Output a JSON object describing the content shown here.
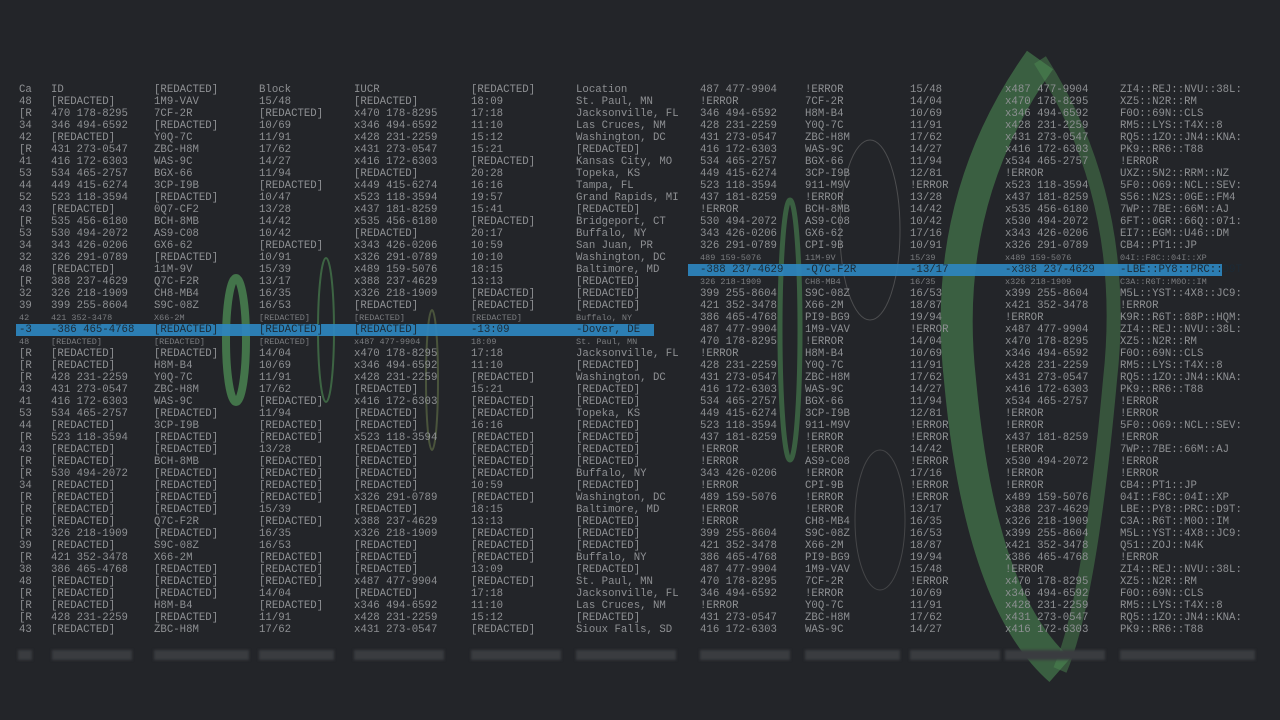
{
  "colors": {
    "background": "#232529",
    "text": "#8e9093",
    "highlight": "#2e86bf",
    "accent_green": "#4f8f55"
  },
  "left_table": {
    "highlighted_row": 20,
    "rows": [
      [
        "Ca",
        "ID",
        "[REDACTED]",
        "Block",
        "IUCR",
        "[REDACTED]",
        "Location"
      ],
      [
        "48",
        "[REDACTED]",
        "1M9-VAV",
        "15/48",
        "[REDACTED]",
        "18:09",
        "St. Paul, MN"
      ],
      [
        "[R",
        "470 178-8295",
        "7CF-2R",
        "[REDACTED]",
        "x470 178-8295",
        "17:18",
        "Jacksonville, FL"
      ],
      [
        "34",
        "346 494-6592",
        "[REDACTED]",
        "10/69",
        "x346 494-6592",
        "11:10",
        "Las Cruces, NM"
      ],
      [
        "42",
        "[REDACTED]",
        "Y0Q-7C",
        "11/91",
        "x428 231-2259",
        "15:12",
        "Washington, DC"
      ],
      [
        "[R",
        "431 273-0547",
        "ZBC-H8M",
        "17/62",
        "x431 273-0547",
        "15:21",
        "[REDACTED]"
      ],
      [
        "41",
        "416 172-6303",
        "WAS-9C",
        "14/27",
        "x416 172-6303",
        "[REDACTED]",
        "Kansas City, MO"
      ],
      [
        "53",
        "534 465-2757",
        "BGX-66",
        "11/94",
        "[REDACTED]",
        "20:28",
        "Topeka, KS"
      ],
      [
        "44",
        "449 415-6274",
        "3CP-I9B",
        "[REDACTED]",
        "x449 415-6274",
        "16:16",
        "Tampa, FL"
      ],
      [
        "52",
        "523 118-3594",
        "[REDACTED]",
        "10/47",
        "x523 118-3594",
        "19:57",
        "Grand Rapids, MI"
      ],
      [
        "43",
        "[REDACTED]",
        "0Q7-CF2",
        "13/28",
        "x437 181-8259",
        "15:41",
        "[REDACTED]"
      ],
      [
        "[R",
        "535 456-6180",
        "BCH-8MB",
        "14/42",
        "x535 456-6180",
        "[REDACTED]",
        "Bridgeport, CT"
      ],
      [
        "53",
        "530 494-2072",
        "AS9-C08",
        "10/42",
        "[REDACTED]",
        "20:17",
        "Buffalo, NY"
      ],
      [
        "34",
        "343 426-0206",
        "GX6-62",
        "[REDACTED]",
        "x343 426-0206",
        "10:59",
        "San Juan, PR"
      ],
      [
        "32",
        "326 291-0789",
        "[REDACTED]",
        "10/91",
        "x326 291-0789",
        "10:10",
        "Washington, DC"
      ],
      [
        "48",
        "[REDACTED]",
        "11M-9V",
        "15/39",
        "x489 159-5076",
        "18:15",
        "Baltimore, MD"
      ],
      [
        "[R",
        "388 237-4629",
        "Q7C-F2R",
        "13/17",
        "x388 237-4629",
        "13:13",
        "[REDACTED]"
      ],
      [
        "32",
        "326 218-1909",
        "CH8-MB4",
        "16/35",
        "x326 218-1909",
        "[REDACTED]",
        "[REDACTED]"
      ],
      [
        "39",
        "399 255-8604",
        "S9C-08Z",
        "16/53",
        "[REDACTED]",
        "[REDACTED]",
        "[REDACTED]"
      ],
      [
        "42",
        "421 352-3478",
        "X66-2M",
        "[REDACTED]",
        "[REDACTED]",
        "[REDACTED]",
        "Buffalo, NY"
      ],
      [
        "-3",
        "-386 465-4768",
        "[REDACTED]",
        "[REDACTED]",
        "[REDACTED]",
        "-13:09",
        "-Dover, DE"
      ],
      [
        "48",
        "[REDACTED]",
        "[REDACTED]",
        "[REDACTED]",
        "x487 477-9904",
        "18:09",
        "St. Paul, MN"
      ],
      [
        "[R",
        "[REDACTED]",
        "[REDACTED]",
        "14/04",
        "x470 178-8295",
        "17:18",
        "Jacksonville, FL"
      ],
      [
        "[R",
        "[REDACTED]",
        "H8M-B4",
        "10/69",
        "x346 494-6592",
        "11:10",
        "[REDACTED]"
      ],
      [
        "[R",
        "428 231-2259",
        "Y0Q-7C",
        "11/91",
        "x428 231-2259",
        "[REDACTED]",
        "Washington, DC"
      ],
      [
        "43",
        "431 273-0547",
        "ZBC-H8M",
        "17/62",
        "[REDACTED]",
        "15:21",
        "[REDACTED]"
      ],
      [
        "41",
        "416 172-6303",
        "WAS-9C",
        "[REDACTED]",
        "x416 172-6303",
        "[REDACTED]",
        "[REDACTED]"
      ],
      [
        "53",
        "534 465-2757",
        "[REDACTED]",
        "11/94",
        "[REDACTED]",
        "[REDACTED]",
        "Topeka, KS"
      ],
      [
        "44",
        "[REDACTED]",
        "3CP-I9B",
        "[REDACTED]",
        "[REDACTED]",
        "16:16",
        "[REDACTED]"
      ],
      [
        "[R",
        "523 118-3594",
        "[REDACTED]",
        "[REDACTED]",
        "x523 118-3594",
        "[REDACTED]",
        "[REDACTED]"
      ],
      [
        "43",
        "[REDACTED]",
        "[REDACTED]",
        "13/28",
        "[REDACTED]",
        "[REDACTED]",
        "[REDACTED]"
      ],
      [
        "[R",
        "[REDACTED]",
        "BCH-8MB",
        "[REDACTED]",
        "[REDACTED]",
        "[REDACTED]",
        "[REDACTED]"
      ],
      [
        "[R",
        "530 494-2072",
        "[REDACTED]",
        "[REDACTED]",
        "[REDACTED]",
        "[REDACTED]",
        "Buffalo, NY"
      ],
      [
        "34",
        "[REDACTED]",
        "[REDACTED]",
        "[REDACTED]",
        "[REDACTED]",
        "10:59",
        "[REDACTED]"
      ],
      [
        "[R",
        "[REDACTED]",
        "[REDACTED]",
        "[REDACTED]",
        "x326 291-0789",
        "[REDACTED]",
        "Washington, DC"
      ],
      [
        "[R",
        "[REDACTED]",
        "[REDACTED]",
        "15/39",
        "[REDACTED]",
        "18:15",
        "Baltimore, MD"
      ],
      [
        "[R",
        "[REDACTED]",
        "Q7C-F2R",
        "[REDACTED]",
        "x388 237-4629",
        "13:13",
        "[REDACTED]"
      ],
      [
        "[R",
        "326 218-1909",
        "[REDACTED]",
        "16/35",
        "x326 218-1909",
        "[REDACTED]",
        "[REDACTED]"
      ],
      [
        "39",
        "[REDACTED]",
        "S9C-08Z",
        "16/53",
        "[REDACTED]",
        "[REDACTED]",
        "[REDACTED]"
      ],
      [
        "[R",
        "421 352-3478",
        "X66-2M",
        "[REDACTED]",
        "[REDACTED]",
        "[REDACTED]",
        "Buffalo, NY"
      ],
      [
        "38",
        "386 465-4768",
        "[REDACTED]",
        "[REDACTED]",
        "[REDACTED]",
        "13:09",
        "[REDACTED]"
      ],
      [
        "48",
        "[REDACTED]",
        "[REDACTED]",
        "[REDACTED]",
        "x487 477-9904",
        "[REDACTED]",
        "St. Paul, MN"
      ],
      [
        "[R",
        "[REDACTED]",
        "[REDACTED]",
        "14/04",
        "[REDACTED]",
        "17:18",
        "Jacksonville, FL"
      ],
      [
        "[R",
        "[REDACTED]",
        "H8M-B4",
        "[REDACTED]",
        "x346 494-6592",
        "11:10",
        "Las Cruces, NM"
      ],
      [
        "[R",
        "428 231-2259",
        "[REDACTED]",
        "11/91",
        "x428 231-2259",
        "15:12",
        "[REDACTED]"
      ],
      [
        "43",
        "[REDACTED]",
        "ZBC-H8M",
        "17/62",
        "x431 273-0547",
        "[REDACTED]",
        "Sioux Falls, SD"
      ]
    ]
  },
  "right_table": {
    "highlighted_row": 15,
    "rows": [
      [
        "487 477-9904",
        "!ERROR",
        "15/48",
        "x487 477-9904",
        "ZI4::REJ::NVU::38L:"
      ],
      [
        "!ERROR",
        "7CF-2R",
        "14/04",
        "x470 178-8295",
        "XZ5::N2R::RM"
      ],
      [
        "346 494-6592",
        "H8M-B4",
        "10/69",
        "x346 494-6592",
        "F0O::69N::CLS"
      ],
      [
        "428 231-2259",
        "Y0Q-7C",
        "11/91",
        "x428 231-2259",
        "RM5::LYS::T4X::8"
      ],
      [
        "431 273-0547",
        "ZBC-H8M",
        "17/62",
        "x431 273-0547",
        "RQ5::1ZO::JN4::KNA:"
      ],
      [
        "416 172-6303",
        "WAS-9C",
        "14/27",
        "x416 172-6303",
        "PK9::RR6::T88"
      ],
      [
        "534 465-2757",
        "BGX-66",
        "11/94",
        "x534 465-2757",
        "!ERROR"
      ],
      [
        "449 415-6274",
        "3CP-I9B",
        "12/81",
        "!ERROR",
        "UXZ::5N2::RRM::NZ"
      ],
      [
        "523 118-3594",
        "911-M9V",
        "!ERROR",
        "x523 118-3594",
        "5F0::O69::NCL::SEV:"
      ],
      [
        "437 181-8259",
        "!ERROR",
        "13/28",
        "x437 181-8259",
        "S56::N2S::0GE::FM4"
      ],
      [
        "!ERROR",
        "BCH-8MB",
        "14/42",
        "x535 456-6180",
        "7WP::7BE::66M::AJ"
      ],
      [
        "530 494-2072",
        "AS9-C08",
        "10/42",
        "x530 494-2072",
        "6FT::0GR::66Q::071:"
      ],
      [
        "343 426-0206",
        "GX6-62",
        "17/16",
        "x343 426-0206",
        "EI7::EGM::U46::DM"
      ],
      [
        "326 291-0789",
        "CPI-9B",
        "10/91",
        "x326 291-0789",
        "CB4::PT1::JP"
      ],
      [
        "489 159-5076",
        "11M-9V",
        "15/39",
        "x489 159-5076",
        "04I::F8C::04I::XP"
      ],
      [
        "-388 237-4629",
        "-Q7C-F2R",
        "-13/17",
        "-x388 237-4629",
        "-LBE::PY8::PRC::D9T"
      ],
      [
        "326 218-1909",
        "CH8-MB4",
        "16/35",
        "x326 218-1909",
        "C3A::R6T::M0O::IM"
      ],
      [
        "399 255-8604",
        "S9C-08Z",
        "16/53",
        "x399 255-8604",
        "M5L::YST::4X8::JC9:"
      ],
      [
        "421 352-3478",
        "X66-2M",
        "18/87",
        "x421 352-3478",
        "!ERROR"
      ],
      [
        "386 465-4768",
        "PI9-BG9",
        "19/94",
        "!ERROR",
        "K9R::R6T::88P::HQM:"
      ],
      [
        "487 477-9904",
        "1M9-VAV",
        "!ERROR",
        "x487 477-9904",
        "ZI4::REJ::NVU::38L:"
      ],
      [
        "470 178-8295",
        "!ERROR",
        "14/04",
        "x470 178-8295",
        "XZ5::N2R::RM"
      ],
      [
        "!ERROR",
        "H8M-B4",
        "10/69",
        "x346 494-6592",
        "F0O::69N::CLS"
      ],
      [
        "428 231-2259",
        "Y0Q-7C",
        "11/91",
        "x428 231-2259",
        "RM5::LYS::T4X::8"
      ],
      [
        "431 273-0547",
        "ZBC-H8M",
        "17/62",
        "x431 273-0547",
        "RQ5::1ZO::JN4::KNA:"
      ],
      [
        "416 172-6303",
        "WAS-9C",
        "14/27",
        "x416 172-6303",
        "PK9::RR6::T88"
      ],
      [
        "534 465-2757",
        "BGX-66",
        "11/94",
        "x534 465-2757",
        "!ERROR"
      ],
      [
        "449 415-6274",
        "3CP-I9B",
        "12/81",
        "!ERROR",
        "!ERROR"
      ],
      [
        "523 118-3594",
        "911-M9V",
        "!ERROR",
        "!ERROR",
        "5F0::O69::NCL::SEV:"
      ],
      [
        "437 181-8259",
        "!ERROR",
        "!ERROR",
        "x437 181-8259",
        "!ERROR"
      ],
      [
        "!ERROR",
        "!ERROR",
        "14/42",
        "!ERROR",
        "7WP::7BE::66M::AJ"
      ],
      [
        "!ERROR",
        "AS9-C08",
        "!ERROR",
        "x530 494-2072",
        "!ERROR"
      ],
      [
        "343 426-0206",
        "!ERROR",
        "17/16",
        "!ERROR",
        "!ERROR"
      ],
      [
        "!ERROR",
        "CPI-9B",
        "!ERROR",
        "!ERROR",
        "CB4::PT1::JP"
      ],
      [
        "489 159-5076",
        "!ERROR",
        "!ERROR",
        "x489 159-5076",
        "04I::F8C::04I::XP"
      ],
      [
        "!ERROR",
        "!ERROR",
        "13/17",
        "x388 237-4629",
        "LBE::PY8::PRC::D9T:"
      ],
      [
        "!ERROR",
        "CH8-MB4",
        "16/35",
        "x326 218-1909",
        "C3A::R6T::M0O::IM"
      ],
      [
        "399 255-8604",
        "S9C-08Z",
        "16/53",
        "x399 255-8604",
        "M5L::YST::4X8::JC9:"
      ],
      [
        "421 352-3478",
        "X66-2M",
        "18/87",
        "x421 352-3478",
        "Q51::ZOJ::N4K"
      ],
      [
        "386 465-4768",
        "PI9-BG9",
        "19/94",
        "x386 465-4768",
        "!ERROR"
      ],
      [
        "487 477-9904",
        "1M9-VAV",
        "15/48",
        "!ERROR",
        "ZI4::REJ::NVU::38L:"
      ],
      [
        "470 178-8295",
        "7CF-2R",
        "!ERROR",
        "x470 178-8295",
        "XZ5::N2R::RM"
      ],
      [
        "346 494-6592",
        "!ERROR",
        "10/69",
        "x346 494-6592",
        "F0O::69N::CLS"
      ],
      [
        "!ERROR",
        "Y0Q-7C",
        "11/91",
        "x428 231-2259",
        "RM5::LYS::T4X::8"
      ],
      [
        "431 273-0547",
        "ZBC-H8M",
        "17/62",
        "x431 273-0547",
        "RQ5::1ZO::JN4::KNA:"
      ],
      [
        "416 172-6303",
        "WAS-9C",
        "14/27",
        "x416 172-6303",
        "PK9::RR6::T88"
      ]
    ]
  }
}
